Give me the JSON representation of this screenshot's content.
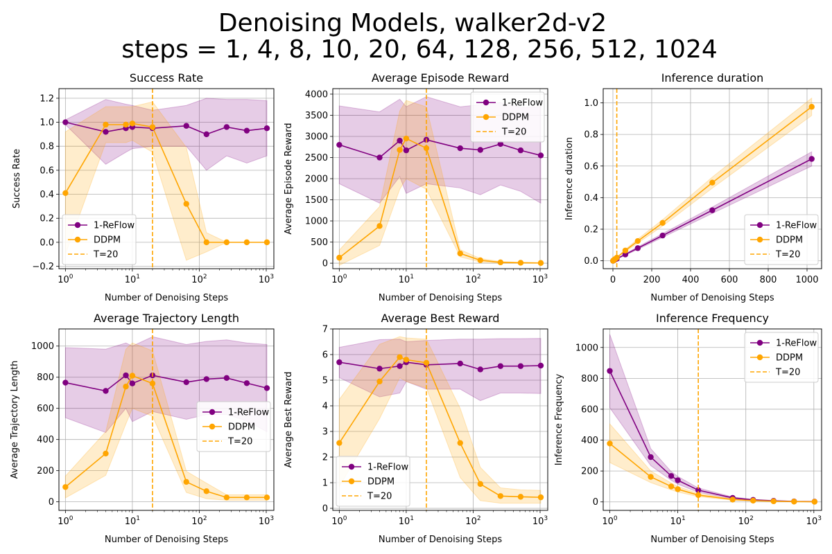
{
  "figure": {
    "title_line1": "Denoising Models, walker2d-v2",
    "title_line2": "steps = 1, 4, 8, 10, 20, 64, 128, 256, 512, 1024"
  },
  "colors": {
    "reflow": "#800080",
    "ddpm": "#FFA500",
    "grid": "#b0b0b0",
    "band_reflow": "#800080",
    "band_ddpm": "#FFA500"
  },
  "chart_data": [
    {
      "type": "line",
      "title": "Success Rate",
      "xlabel": "Number of Denoising Steps",
      "ylabel": "Success Rate",
      "xscale": "log",
      "xlim": [
        0.8,
        1300
      ],
      "ylim": [
        -0.22,
        1.28
      ],
      "yticks": [
        -0.2,
        0.0,
        0.2,
        0.4,
        0.6,
        0.8,
        1.0,
        1.2
      ],
      "ytick_labels": [
        "−0.2",
        "0.0",
        "0.2",
        "0.4",
        "0.6",
        "0.8",
        "1.0",
        "1.2"
      ],
      "xticks": [
        1,
        10,
        100,
        1000
      ],
      "xtick_labels": [
        [
          "10",
          "0"
        ],
        [
          "10",
          "1"
        ],
        [
          "10",
          "2"
        ],
        [
          "10",
          "3"
        ]
      ],
      "grid": true,
      "legend_position": "lower-left",
      "vline": 20,
      "vline_label": "T=20",
      "x": [
        1,
        4,
        8,
        10,
        20,
        64,
        128,
        256,
        512,
        1024
      ],
      "series": [
        {
          "name": "1-ReFlow",
          "color": "#800080",
          "values": [
            1.0,
            0.92,
            0.95,
            0.96,
            0.95,
            0.97,
            0.9,
            0.96,
            0.93,
            0.95
          ],
          "band_low": [
            0.98,
            0.65,
            0.75,
            0.78,
            0.8,
            0.8,
            0.6,
            0.72,
            0.66,
            0.72
          ],
          "band_high": [
            1.02,
            1.19,
            1.15,
            1.14,
            1.1,
            1.14,
            1.2,
            1.19,
            1.19,
            1.18
          ]
        },
        {
          "name": "DDPM",
          "color": "#FFA500",
          "values": [
            0.41,
            0.98,
            0.98,
            0.99,
            0.96,
            0.32,
            0.0,
            0.0,
            0.0,
            0.0
          ],
          "band_low": [
            -0.1,
            0.83,
            0.83,
            0.85,
            0.75,
            -0.15,
            -0.08,
            0.0,
            0.0,
            0.0
          ],
          "band_high": [
            0.92,
            1.13,
            1.13,
            1.13,
            1.17,
            0.79,
            0.08,
            0.0,
            0.0,
            0.0
          ]
        }
      ]
    },
    {
      "type": "line",
      "title": "Average Episode Reward",
      "xlabel": "Number of Denoising Steps",
      "ylabel": "Average Episode Reward",
      "xscale": "log",
      "xlim": [
        0.8,
        1300
      ],
      "ylim": [
        -130,
        4130
      ],
      "yticks": [
        0,
        500,
        1000,
        1500,
        2000,
        2500,
        3000,
        3500,
        4000
      ],
      "ytick_labels": [
        "0",
        "500",
        "1000",
        "1500",
        "2000",
        "2500",
        "3000",
        "3500",
        "4000"
      ],
      "xticks": [
        1,
        10,
        100,
        1000
      ],
      "xtick_labels": [
        [
          "10",
          "0"
        ],
        [
          "10",
          "1"
        ],
        [
          "10",
          "2"
        ],
        [
          "10",
          "3"
        ]
      ],
      "grid": true,
      "legend_position": "upper-right",
      "vline": 20,
      "vline_label": "T=20",
      "x": [
        1,
        4,
        8,
        10,
        20,
        64,
        128,
        256,
        512,
        1024
      ],
      "series": [
        {
          "name": "1-ReFlow",
          "color": "#800080",
          "values": [
            2800,
            2500,
            2900,
            2670,
            2920,
            2720,
            2680,
            2820,
            2670,
            2550
          ],
          "band_low": [
            1880,
            1420,
            2050,
            1650,
            1880,
            1780,
            1620,
            1850,
            1700,
            1420
          ],
          "band_high": [
            3720,
            3580,
            3880,
            3700,
            3940,
            3700,
            3750,
            3800,
            3680,
            3700
          ]
        },
        {
          "name": "DDPM",
          "color": "#FFA500",
          "values": [
            130,
            880,
            2680,
            2950,
            2720,
            230,
            70,
            20,
            10,
            5
          ],
          "band_low": [
            -50,
            420,
            1750,
            2000,
            1750,
            150,
            30,
            0,
            0,
            0
          ],
          "band_high": [
            310,
            1340,
            3600,
            3850,
            3700,
            320,
            110,
            40,
            20,
            10
          ]
        }
      ]
    },
    {
      "type": "line",
      "title": "Inference duration",
      "xlabel": "Number of Denoising Steps",
      "ylabel": "Inference duration",
      "xscale": "linear",
      "xlim": [
        -50,
        1075
      ],
      "ylim": [
        -0.05,
        1.09
      ],
      "yticks": [
        0.0,
        0.2,
        0.4,
        0.6,
        0.8,
        1.0
      ],
      "ytick_labels": [
        "0.0",
        "0.2",
        "0.4",
        "0.6",
        "0.8",
        "1.0"
      ],
      "xticks": [
        0,
        200,
        400,
        600,
        800,
        1000
      ],
      "xtick_labels": [
        [
          "0",
          ""
        ],
        [
          "200",
          ""
        ],
        [
          "400",
          ""
        ],
        [
          "600",
          ""
        ],
        [
          "800",
          ""
        ],
        [
          "1000",
          ""
        ]
      ],
      "grid": true,
      "legend_position": "lower-right",
      "vline": 20,
      "vline_label": "T=20",
      "x": [
        1,
        4,
        8,
        10,
        20,
        64,
        128,
        256,
        512,
        1024
      ],
      "series": [
        {
          "name": "1-ReFlow",
          "color": "#800080",
          "values": [
            0.0,
            0.003,
            0.006,
            0.007,
            0.013,
            0.04,
            0.08,
            0.16,
            0.32,
            0.645
          ],
          "band_low": [
            0.0,
            0.002,
            0.005,
            0.006,
            0.011,
            0.035,
            0.072,
            0.148,
            0.3,
            0.6
          ],
          "band_high": [
            0.0,
            0.004,
            0.007,
            0.008,
            0.015,
            0.045,
            0.088,
            0.172,
            0.34,
            0.69
          ]
        },
        {
          "name": "DDPM",
          "color": "#FFA500",
          "values": [
            0.0,
            0.004,
            0.008,
            0.01,
            0.02,
            0.065,
            0.125,
            0.24,
            0.495,
            0.975
          ],
          "band_low": [
            0.0,
            0.003,
            0.007,
            0.009,
            0.018,
            0.058,
            0.112,
            0.22,
            0.46,
            0.92
          ],
          "band_high": [
            0.0,
            0.005,
            0.009,
            0.011,
            0.022,
            0.072,
            0.138,
            0.26,
            0.53,
            1.03
          ]
        }
      ]
    },
    {
      "type": "line",
      "title": "Average Trajectory Length",
      "xlabel": "Number of Denoising Steps",
      "ylabel": "Average Trajectory Length",
      "xscale": "log",
      "xlim": [
        0.8,
        1300
      ],
      "ylim": [
        -55,
        1110
      ],
      "yticks": [
        0,
        200,
        400,
        600,
        800,
        1000
      ],
      "ytick_labels": [
        "0",
        "200",
        "400",
        "600",
        "800",
        "1000"
      ],
      "xticks": [
        1,
        10,
        100,
        1000
      ],
      "xtick_labels": [
        [
          "10",
          "0"
        ],
        [
          "10",
          "1"
        ],
        [
          "10",
          "2"
        ],
        [
          "10",
          "3"
        ]
      ],
      "grid": true,
      "legend_position": "center-right",
      "vline": 20,
      "vline_label": "T=20",
      "x": [
        1,
        4,
        8,
        10,
        20,
        64,
        128,
        256,
        512,
        1024
      ],
      "series": [
        {
          "name": "1-ReFlow",
          "color": "#800080",
          "values": [
            765,
            712,
            812,
            760,
            812,
            768,
            788,
            795,
            762,
            730
          ],
          "band_low": [
            540,
            445,
            600,
            515,
            580,
            530,
            560,
            560,
            520,
            450
          ],
          "band_high": [
            990,
            980,
            1020,
            1000,
            1060,
            1010,
            1030,
            1040,
            1020,
            1010
          ]
        },
        {
          "name": "DDPM",
          "color": "#FFA500",
          "values": [
            95,
            310,
            740,
            810,
            760,
            128,
            68,
            28,
            28,
            28
          ],
          "band_low": [
            25,
            170,
            500,
            600,
            550,
            60,
            20,
            10,
            10,
            10
          ],
          "band_high": [
            165,
            450,
            980,
            1020,
            970,
            196,
            120,
            45,
            45,
            45
          ]
        }
      ]
    },
    {
      "type": "line",
      "title": "Average Best Reward",
      "xlabel": "Number of Denoising Steps",
      "ylabel": "Average Best Reward",
      "xscale": "log",
      "xlim": [
        0.8,
        1300
      ],
      "ylim": [
        -0.08,
        7.0
      ],
      "yticks": [
        0,
        1,
        2,
        3,
        4,
        5,
        6,
        7
      ],
      "ytick_labels": [
        "0",
        "1",
        "2",
        "3",
        "4",
        "5",
        "6",
        "7"
      ],
      "xticks": [
        1,
        10,
        100,
        1000
      ],
      "xtick_labels": [
        [
          "10",
          "0"
        ],
        [
          "10",
          "1"
        ],
        [
          "10",
          "2"
        ],
        [
          "10",
          "3"
        ]
      ],
      "grid": true,
      "legend_position": "lower-left",
      "vline": 20,
      "vline_label": "T=20",
      "x": [
        1,
        4,
        8,
        10,
        20,
        64,
        128,
        256,
        512,
        1024
      ],
      "series": [
        {
          "name": "1-ReFlow",
          "color": "#800080",
          "values": [
            5.7,
            5.45,
            5.55,
            5.7,
            5.6,
            5.65,
            5.42,
            5.55,
            5.55,
            5.57
          ],
          "band_low": [
            5.1,
            4.35,
            4.5,
            4.95,
            4.65,
            4.65,
            4.2,
            4.5,
            4.5,
            4.48
          ],
          "band_high": [
            6.28,
            6.58,
            6.6,
            6.5,
            6.55,
            6.6,
            6.6,
            6.62,
            6.62,
            6.63
          ]
        },
        {
          "name": "DDPM",
          "color": "#FFA500",
          "values": [
            2.55,
            4.95,
            5.9,
            5.8,
            5.68,
            2.55,
            0.95,
            0.48,
            0.45,
            0.43
          ],
          "band_low": [
            0.85,
            3.5,
            5.1,
            4.95,
            4.7,
            1.2,
            0.3,
            0.2,
            0.2,
            0.2
          ],
          "band_high": [
            4.25,
            6.4,
            6.7,
            6.65,
            6.6,
            3.9,
            1.6,
            0.8,
            0.72,
            0.7
          ]
        }
      ]
    },
    {
      "type": "line",
      "title": "Inference Frequency",
      "xlabel": "Number of Denoising Steps",
      "ylabel": "Inference Frequency",
      "xscale": "log",
      "xlim": [
        0.8,
        1300
      ],
      "ylim": [
        -55,
        1120
      ],
      "yticks": [
        0,
        200,
        400,
        600,
        800,
        1000
      ],
      "ytick_labels": [
        "0",
        "200",
        "400",
        "600",
        "800",
        "1000"
      ],
      "xticks": [
        1,
        10,
        100,
        1000
      ],
      "xtick_labels": [
        [
          "10",
          "0"
        ],
        [
          "10",
          "1"
        ],
        [
          "10",
          "2"
        ],
        [
          "10",
          "3"
        ]
      ],
      "grid": true,
      "legend_position": "upper-right",
      "vline": 20,
      "vline_label": "T=20",
      "x": [
        1,
        4,
        8,
        10,
        20,
        64,
        128,
        256,
        512,
        1024
      ],
      "series": [
        {
          "name": "1-ReFlow",
          "color": "#800080",
          "values": [
            848,
            290,
            168,
            140,
            76,
            26,
            13,
            7,
            3,
            2
          ],
          "band_low": [
            610,
            235,
            140,
            115,
            62,
            20,
            10,
            5,
            2,
            1
          ],
          "band_high": [
            1085,
            345,
            196,
            165,
            90,
            32,
            16,
            9,
            4,
            3
          ]
        },
        {
          "name": "DDPM",
          "color": "#FFA500",
          "values": [
            378,
            162,
            100,
            82,
            44,
            15,
            8,
            4,
            2,
            1
          ],
          "band_low": [
            255,
            125,
            78,
            64,
            34,
            11,
            6,
            3,
            1,
            0
          ],
          "band_high": [
            505,
            200,
            122,
            100,
            54,
            19,
            10,
            5,
            3,
            2
          ]
        }
      ]
    }
  ]
}
